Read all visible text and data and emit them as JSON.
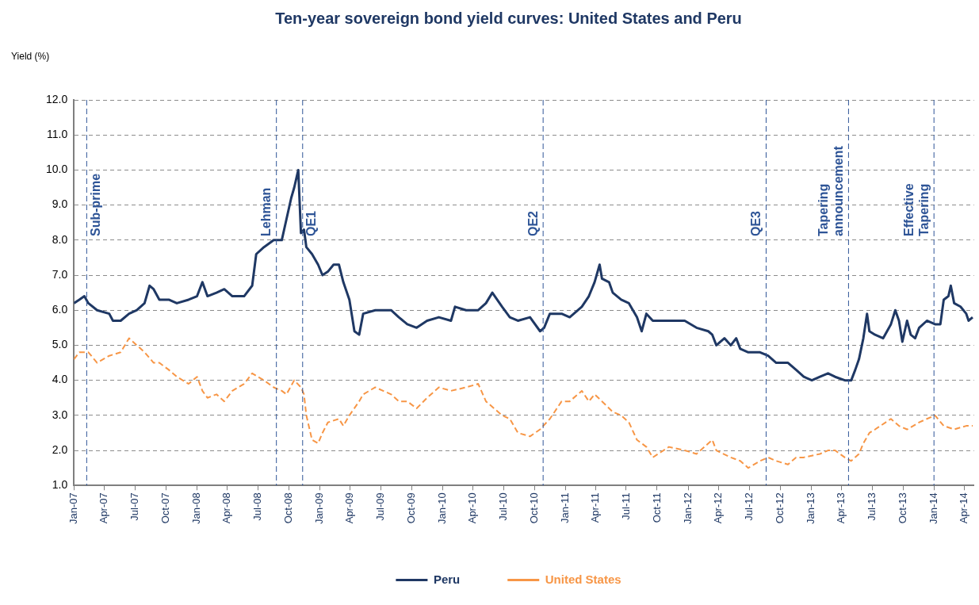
{
  "chart_data": {
    "type": "line",
    "title": "Ten-year sovereign bond yield curves: United States and Peru",
    "ylabel": "Yield (%)",
    "xlim": [
      "2007-01-01",
      "2014-04-30"
    ],
    "xticks": [
      {
        "value": "2007-01-01",
        "label": "Jan-07"
      },
      {
        "value": "2007-04-01",
        "label": "Apr-07"
      },
      {
        "value": "2007-07-01",
        "label": "Jul-07"
      },
      {
        "value": "2007-10-01",
        "label": "Oct-07"
      },
      {
        "value": "2008-01-01",
        "label": "Jan-08"
      },
      {
        "value": "2008-04-01",
        "label": "Apr-08"
      },
      {
        "value": "2008-07-01",
        "label": "Jul-08"
      },
      {
        "value": "2008-10-01",
        "label": "Oct-08"
      },
      {
        "value": "2009-01-01",
        "label": "Jan-09"
      },
      {
        "value": "2009-04-01",
        "label": "Apr-09"
      },
      {
        "value": "2009-07-01",
        "label": "Jul-09"
      },
      {
        "value": "2009-10-01",
        "label": "Oct-09"
      },
      {
        "value": "2010-01-01",
        "label": "Jan-10"
      },
      {
        "value": "2010-04-01",
        "label": "Apr-10"
      },
      {
        "value": "2010-07-01",
        "label": "Jul-10"
      },
      {
        "value": "2010-10-01",
        "label": "Oct-10"
      },
      {
        "value": "2011-01-01",
        "label": "Jan-11"
      },
      {
        "value": "2011-04-01",
        "label": "Apr-11"
      },
      {
        "value": "2011-07-01",
        "label": "Jul-11"
      },
      {
        "value": "2011-10-01",
        "label": "Oct-11"
      },
      {
        "value": "2012-01-01",
        "label": "Jan-12"
      },
      {
        "value": "2012-04-01",
        "label": "Apr-12"
      },
      {
        "value": "2012-07-01",
        "label": "Jul-12"
      },
      {
        "value": "2012-10-01",
        "label": "Oct-12"
      },
      {
        "value": "2013-01-01",
        "label": "Jan-13"
      },
      {
        "value": "2013-04-01",
        "label": "Apr-13"
      },
      {
        "value": "2013-07-01",
        "label": "Jul-13"
      },
      {
        "value": "2013-10-01",
        "label": "Oct-13"
      },
      {
        "value": "2014-01-01",
        "label": "Jan-14"
      },
      {
        "value": "2014-04-01",
        "label": "Apr-14"
      }
    ],
    "ylim": [
      1,
      12
    ],
    "yticks": [
      {
        "value": 1,
        "label": "1.0"
      },
      {
        "value": 2,
        "label": "2.0"
      },
      {
        "value": 3,
        "label": "3.0"
      },
      {
        "value": 4,
        "label": "4.0"
      },
      {
        "value": 5,
        "label": "5.0"
      },
      {
        "value": 6,
        "label": "6.0"
      },
      {
        "value": 7,
        "label": "7.0"
      },
      {
        "value": 8,
        "label": "8.0"
      },
      {
        "value": 9,
        "label": "9.0"
      },
      {
        "value": 10,
        "label": "10.0"
      },
      {
        "value": 11,
        "label": "11.0"
      },
      {
        "value": 12,
        "label": "12.0"
      }
    ],
    "grid": "y",
    "legend": "bottom",
    "marker": "none",
    "ref_lines": [
      {
        "axis": "x",
        "value": "2007-02-08",
        "label": "Sub-prime",
        "color": "#2f5597",
        "line_style": "dashed"
      },
      {
        "axis": "x",
        "value": "2008-08-25",
        "label": "Lehman",
        "color": "#2f5597",
        "line_style": "dashed"
      },
      {
        "axis": "x",
        "value": "2008-11-11",
        "label": "QE1",
        "color": "#2f5597",
        "line_style": "dashed"
      },
      {
        "axis": "x",
        "value": "2010-10-27",
        "label": "QE2",
        "color": "#2f5597",
        "line_style": "dashed"
      },
      {
        "axis": "x",
        "value": "2012-08-20",
        "label": "QE3",
        "color": "#2f5597",
        "line_style": "dashed"
      },
      {
        "axis": "x",
        "value": "2013-04-22",
        "label": "Tapering announcement",
        "color": "#2f5597",
        "line_style": "dashed"
      },
      {
        "axis": "x",
        "value": "2014-01-01",
        "label": "Effective Tapering",
        "color": "#2f5597",
        "line_style": "dashed"
      }
    ],
    "series": [
      {
        "name": "Peru",
        "color": "#1f3864",
        "line_style": "solid",
        "x": [
          "2007-01-01",
          "2007-01-17",
          "2007-02-01",
          "2007-02-13",
          "2007-03-11",
          "2007-04-16",
          "2007-04-27",
          "2007-05-20",
          "2007-06-14",
          "2007-07-07",
          "2007-07-30",
          "2007-08-14",
          "2007-08-26",
          "2007-09-12",
          "2007-10-10",
          "2007-11-03",
          "2007-12-08",
          "2008-01-02",
          "2008-01-18",
          "2008-02-02",
          "2008-02-29",
          "2008-03-23",
          "2008-04-16",
          "2008-05-21",
          "2008-06-14",
          "2008-06-26",
          "2008-07-19",
          "2008-08-17",
          "2008-09-10",
          "2008-09-24",
          "2008-10-08",
          "2008-10-17",
          "2008-10-29",
          "2008-11-06",
          "2008-11-15",
          "2008-11-22",
          "2008-12-09",
          "2008-12-27",
          "2009-01-09",
          "2009-01-25",
          "2009-02-11",
          "2009-02-27",
          "2009-03-12",
          "2009-03-30",
          "2009-04-14",
          "2009-04-28",
          "2009-05-10",
          "2009-06-15",
          "2009-08-01",
          "2009-08-24",
          "2009-09-18",
          "2009-10-16",
          "2009-11-16",
          "2009-12-21",
          "2010-01-26",
          "2010-02-07",
          "2010-03-12",
          "2010-04-17",
          "2010-05-10",
          "2010-05-29",
          "2010-06-27",
          "2010-07-20",
          "2010-08-13",
          "2010-09-18",
          "2010-10-18",
          "2010-10-30",
          "2010-11-16",
          "2010-12-21",
          "2011-01-14",
          "2011-02-19",
          "2011-03-12",
          "2011-03-29",
          "2011-04-13",
          "2011-04-20",
          "2011-05-11",
          "2011-05-22",
          "2011-06-16",
          "2011-07-09",
          "2011-08-02",
          "2011-08-16",
          "2011-08-30",
          "2011-09-18",
          "2011-11-05",
          "2011-12-22",
          "2012-01-26",
          "2012-03-01",
          "2012-03-13",
          "2012-03-25",
          "2012-04-18",
          "2012-05-07",
          "2012-05-23",
          "2012-06-04",
          "2012-06-28",
          "2012-08-02",
          "2012-08-26",
          "2012-09-19",
          "2012-10-24",
          "2012-11-17",
          "2012-12-10",
          "2013-01-03",
          "2013-01-27",
          "2013-02-20",
          "2013-03-13",
          "2013-04-11",
          "2013-04-30",
          "2013-05-12",
          "2013-05-23",
          "2013-06-05",
          "2013-06-16",
          "2013-06-23",
          "2013-07-10",
          "2013-08-03",
          "2013-08-26",
          "2013-09-08",
          "2013-09-19",
          "2013-09-29",
          "2013-10-13",
          "2013-10-24",
          "2013-11-06",
          "2013-11-18",
          "2013-12-11",
          "2014-01-04",
          "2014-01-20",
          "2014-01-30",
          "2014-02-13",
          "2014-02-20",
          "2014-03-02",
          "2014-03-21",
          "2014-04-07",
          "2014-04-14",
          "2014-04-26"
        ],
        "values": [
          6.2,
          6.3,
          6.4,
          6.2,
          6.0,
          5.9,
          5.7,
          5.7,
          5.9,
          6.0,
          6.2,
          6.7,
          6.6,
          6.3,
          6.3,
          6.2,
          6.3,
          6.4,
          6.8,
          6.4,
          6.5,
          6.6,
          6.4,
          6.4,
          6.7,
          7.6,
          7.8,
          8.0,
          8.0,
          8.6,
          9.2,
          9.5,
          10.0,
          8.2,
          8.3,
          7.8,
          7.6,
          7.3,
          7.0,
          7.1,
          7.3,
          7.3,
          6.8,
          6.3,
          5.4,
          5.3,
          5.9,
          6.0,
          6.0,
          5.8,
          5.6,
          5.5,
          5.7,
          5.8,
          5.7,
          6.1,
          6.0,
          6.0,
          6.2,
          6.5,
          6.1,
          5.8,
          5.7,
          5.8,
          5.4,
          5.5,
          5.9,
          5.9,
          5.8,
          6.1,
          6.4,
          6.8,
          7.3,
          6.9,
          6.8,
          6.5,
          6.3,
          6.2,
          5.8,
          5.4,
          5.9,
          5.7,
          5.7,
          5.7,
          5.5,
          5.4,
          5.3,
          5.0,
          5.2,
          5.0,
          5.2,
          4.9,
          4.8,
          4.8,
          4.7,
          4.5,
          4.5,
          4.3,
          4.1,
          4.0,
          4.1,
          4.2,
          4.1,
          4.0,
          4.0,
          4.3,
          4.6,
          5.2,
          5.9,
          5.4,
          5.3,
          5.2,
          5.6,
          6.0,
          5.7,
          5.1,
          5.7,
          5.3,
          5.2,
          5.5,
          5.7,
          5.6,
          5.6,
          6.3,
          6.4,
          6.7,
          6.2,
          6.1,
          5.9,
          5.7,
          5.8
        ]
      },
      {
        "name": "United States",
        "color": "#f79646",
        "line_style": "dashed",
        "x": [
          "2007-01-01",
          "2007-01-17",
          "2007-02-13",
          "2007-03-11",
          "2007-04-16",
          "2007-05-20",
          "2007-06-14",
          "2007-07-07",
          "2007-07-30",
          "2007-08-26",
          "2007-09-12",
          "2007-10-10",
          "2007-11-03",
          "2007-12-08",
          "2008-01-02",
          "2008-01-18",
          "2008-02-02",
          "2008-02-29",
          "2008-03-23",
          "2008-04-16",
          "2008-05-21",
          "2008-06-14",
          "2008-07-19",
          "2008-08-17",
          "2008-09-10",
          "2008-09-24",
          "2008-10-17",
          "2008-11-06",
          "2008-11-15",
          "2008-11-22",
          "2008-12-09",
          "2008-12-27",
          "2009-01-09",
          "2009-01-25",
          "2009-02-27",
          "2009-03-12",
          "2009-03-30",
          "2009-04-28",
          "2009-05-10",
          "2009-06-15",
          "2009-08-01",
          "2009-08-24",
          "2009-09-18",
          "2009-10-16",
          "2009-11-16",
          "2009-12-21",
          "2010-01-26",
          "2010-03-12",
          "2010-04-17",
          "2010-05-10",
          "2010-06-27",
          "2010-07-20",
          "2010-08-13",
          "2010-09-18",
          "2010-10-18",
          "2010-11-16",
          "2010-12-21",
          "2011-01-14",
          "2011-02-19",
          "2011-03-12",
          "2011-03-29",
          "2011-04-20",
          "2011-05-22",
          "2011-06-16",
          "2011-07-09",
          "2011-08-02",
          "2011-08-30",
          "2011-09-18",
          "2011-11-05",
          "2011-12-22",
          "2012-01-26",
          "2012-03-01",
          "2012-03-13",
          "2012-03-25",
          "2012-05-07",
          "2012-06-04",
          "2012-06-28",
          "2012-08-02",
          "2012-08-26",
          "2012-09-19",
          "2012-10-24",
          "2012-11-17",
          "2012-12-10",
          "2013-01-27",
          "2013-02-20",
          "2013-03-13",
          "2013-04-11",
          "2013-04-30",
          "2013-05-23",
          "2013-06-05",
          "2013-06-23",
          "2013-07-10",
          "2013-08-26",
          "2013-09-19",
          "2013-10-13",
          "2013-11-18",
          "2013-12-11",
          "2014-01-04",
          "2014-01-30",
          "2014-03-02",
          "2014-04-07",
          "2014-04-26"
        ],
        "values": [
          4.6,
          4.8,
          4.8,
          4.5,
          4.7,
          4.8,
          5.2,
          5.0,
          4.8,
          4.5,
          4.5,
          4.3,
          4.1,
          3.9,
          4.1,
          3.7,
          3.5,
          3.6,
          3.4,
          3.7,
          3.9,
          4.2,
          4.0,
          3.8,
          3.7,
          3.6,
          4.0,
          3.8,
          3.6,
          3.0,
          2.3,
          2.2,
          2.5,
          2.8,
          2.9,
          2.7,
          3.0,
          3.4,
          3.6,
          3.8,
          3.6,
          3.4,
          3.4,
          3.2,
          3.5,
          3.8,
          3.7,
          3.8,
          3.9,
          3.4,
          3.0,
          2.9,
          2.5,
          2.4,
          2.6,
          2.9,
          3.4,
          3.4,
          3.7,
          3.4,
          3.6,
          3.4,
          3.1,
          3.0,
          2.8,
          2.3,
          2.1,
          1.8,
          2.1,
          2.0,
          1.9,
          2.2,
          2.3,
          2.0,
          1.8,
          1.7,
          1.5,
          1.7,
          1.8,
          1.7,
          1.6,
          1.8,
          1.8,
          1.9,
          2.0,
          2.0,
          1.8,
          1.7,
          1.9,
          2.2,
          2.5,
          2.6,
          2.9,
          2.7,
          2.6,
          2.8,
          2.9,
          3.0,
          2.7,
          2.6,
          2.7,
          2.7
        ]
      }
    ]
  }
}
